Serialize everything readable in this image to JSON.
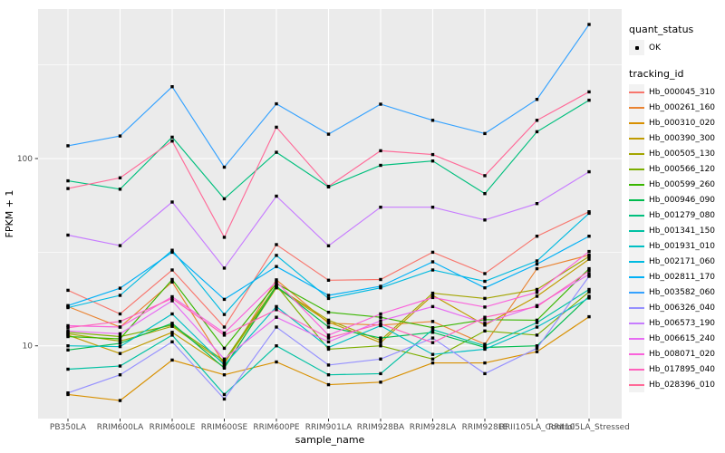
{
  "legend": {
    "quant_status_title": "quant_status",
    "ok_label": "OK",
    "tracking_title": "tracking_id"
  },
  "chart_data": {
    "type": "line",
    "title": "",
    "xlabel": "sample_name",
    "ylabel": "FPKM + 1",
    "y_scale": "log10",
    "grid": true,
    "legend_position": "right",
    "ylim": [
      4,
      650
    ],
    "y_ticks": [
      {
        "label": "10",
        "value": 10
      },
      {
        "label": "100",
        "value": 100
      }
    ],
    "y_minor": [
      31.62,
      316.23
    ],
    "colors": {
      "panel": "#EBEBEB",
      "grid": "#FFFFFF",
      "marker": "#000000",
      "tick_text": "#4D4D4D",
      "tick_mark": "#333333",
      "axis_title": "#000000",
      "legend_key_bg": "#F2F2F2"
    },
    "quant_status": "OK",
    "categories": [
      "PB350LA",
      "RRIM600LA",
      "RRIM600LE",
      "RRIM600SE",
      "RRIM600PE",
      "RRIM901LA",
      "RRIM928BA",
      "RRIM928LA",
      "RRIM928LE",
      "RRII105LA_Control",
      "RRII105LA_Stressed"
    ],
    "series": [
      {
        "name": "Hb_000045_310",
        "color": "#F8766D",
        "values": [
          19.8,
          14.8,
          25.4,
          12.6,
          34.7,
          22.4,
          22.6,
          31.6,
          24.3,
          38.5,
          52.0
        ]
      },
      {
        "name": "Hb_000261_160",
        "color": "#EA8331",
        "values": [
          16.2,
          12.6,
          21.9,
          8.0,
          22.5,
          13.2,
          12.9,
          13.5,
          10.2,
          25.8,
          30.5
        ]
      },
      {
        "name": "Hb_000310_020",
        "color": "#D89000",
        "values": [
          5.5,
          5.1,
          8.4,
          7.0,
          8.2,
          6.2,
          6.4,
          8.1,
          8.1,
          9.3,
          14.3
        ]
      },
      {
        "name": "Hb_000390_300",
        "color": "#C09B00",
        "values": [
          11.4,
          9.1,
          11.8,
          7.7,
          20.4,
          13.4,
          10.4,
          18.6,
          12.9,
          18.4,
          29.0
        ]
      },
      {
        "name": "Hb_000505_130",
        "color": "#A3A500",
        "values": [
          11.6,
          10.6,
          12.7,
          8.1,
          20.6,
          13.7,
          10.7,
          19.1,
          17.9,
          20.0,
          30.0
        ]
      },
      {
        "name": "Hb_000566_120",
        "color": "#7CAE00",
        "values": [
          11.8,
          11.2,
          12.9,
          8.3,
          21.0,
          9.6,
          10.0,
          8.5,
          12.0,
          11.4,
          19.4
        ]
      },
      {
        "name": "Hb_000599_260",
        "color": "#39B600",
        "values": [
          11.2,
          10.9,
          22.6,
          9.7,
          21.5,
          15.1,
          14.2,
          12.5,
          13.8,
          13.7,
          25.8
        ]
      },
      {
        "name": "Hb_000946_090",
        "color": "#00BB4E",
        "values": [
          9.5,
          10.3,
          13.2,
          7.6,
          20.8,
          12.6,
          11.0,
          11.8,
          9.8,
          10.0,
          18.4
        ]
      },
      {
        "name": "Hb_001279_080",
        "color": "#00BF7D",
        "values": [
          76.0,
          68.6,
          130.0,
          61.0,
          108.0,
          70.6,
          92.0,
          97.0,
          65.0,
          139.0,
          205.0
        ]
      },
      {
        "name": "Hb_001341_150",
        "color": "#00C1A3",
        "values": [
          7.5,
          7.8,
          11.4,
          5.5,
          10.0,
          7.0,
          7.1,
          12.2,
          10.0,
          13.3,
          20.0
        ]
      },
      {
        "name": "Hb_001931_010",
        "color": "#00BFC4",
        "values": [
          10.0,
          9.9,
          14.8,
          7.9,
          16.2,
          9.8,
          12.8,
          9.0,
          9.6,
          12.6,
          18.0
        ]
      },
      {
        "name": "Hb_002171_060",
        "color": "#00BAE0",
        "values": [
          16.0,
          18.6,
          32.4,
          14.7,
          30.4,
          17.9,
          20.4,
          25.4,
          22.1,
          28.4,
          51.0
        ]
      },
      {
        "name": "Hb_002811_170",
        "color": "#00B0F6",
        "values": [
          16.4,
          20.3,
          31.6,
          17.7,
          26.5,
          18.6,
          20.8,
          28.1,
          20.4,
          27.3,
          38.5
        ]
      },
      {
        "name": "Hb_003582_060",
        "color": "#35A2FF",
        "values": [
          117.0,
          132.0,
          242.0,
          90.0,
          196.0,
          135.0,
          195.0,
          160.0,
          136.0,
          207.0,
          520.0
        ]
      },
      {
        "name": "Hb_006326_040",
        "color": "#9590FF",
        "values": [
          5.6,
          7.0,
          10.5,
          5.2,
          12.6,
          7.9,
          8.5,
          11.0,
          7.1,
          9.7,
          23.5
        ]
      },
      {
        "name": "Hb_006573_190",
        "color": "#C77CFF",
        "values": [
          39.0,
          34.3,
          58.6,
          26.0,
          63.0,
          34.2,
          55.0,
          55.0,
          47.0,
          57.5,
          85.0
        ]
      },
      {
        "name": "Hb_006615_240",
        "color": "#E76BF3",
        "values": [
          12.0,
          11.6,
          17.4,
          8.5,
          14.2,
          10.5,
          13.6,
          16.2,
          13.2,
          16.4,
          24.1
        ]
      },
      {
        "name": "Hb_008071_020",
        "color": "#FA62DB",
        "values": [
          12.8,
          12.6,
          18.3,
          11.7,
          22.0,
          11.4,
          14.8,
          18.1,
          16.1,
          19.3,
          31.9
        ]
      },
      {
        "name": "Hb_017895_040",
        "color": "#FF62BC",
        "values": [
          12.5,
          13.5,
          17.9,
          11.4,
          15.6,
          11.0,
          13.1,
          10.4,
          14.2,
          16.2,
          25.1
        ]
      },
      {
        "name": "Hb_028396_010",
        "color": "#FF6A98",
        "values": [
          69.2,
          78.9,
          124.0,
          38.0,
          147.0,
          71.0,
          110.0,
          105.0,
          81.0,
          160.0,
          227.0
        ]
      }
    ]
  }
}
